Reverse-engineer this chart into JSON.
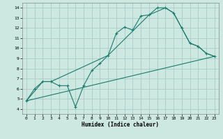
{
  "xlabel": "Humidex (Indice chaleur)",
  "background_color": "#cce8e0",
  "grid_color": "#aaccc4",
  "line_color": "#1a7a6e",
  "xlim": [
    -0.5,
    23.5
  ],
  "ylim": [
    3.5,
    14.5
  ],
  "xticks": [
    0,
    1,
    2,
    3,
    4,
    5,
    6,
    7,
    8,
    9,
    10,
    11,
    12,
    13,
    14,
    15,
    16,
    17,
    18,
    19,
    20,
    21,
    22,
    23
  ],
  "yticks": [
    4,
    5,
    6,
    7,
    8,
    9,
    10,
    11,
    12,
    13,
    14
  ],
  "line1_x": [
    0,
    1,
    2,
    3,
    4,
    5,
    6,
    7,
    8,
    9,
    10,
    11,
    12,
    13,
    14,
    15,
    16,
    17,
    18,
    19,
    20,
    21,
    22,
    23
  ],
  "line1_y": [
    4.8,
    6.0,
    6.7,
    6.7,
    6.3,
    6.3,
    4.2,
    6.3,
    7.8,
    8.5,
    9.3,
    11.5,
    12.1,
    11.8,
    13.2,
    13.3,
    14.0,
    14.0,
    13.5,
    12.0,
    10.5,
    10.2,
    9.5,
    9.2
  ],
  "line2_x": [
    0,
    2,
    3,
    10,
    15,
    17,
    18,
    19,
    20,
    21,
    22,
    23
  ],
  "line2_y": [
    4.8,
    6.7,
    6.7,
    9.3,
    13.3,
    14.0,
    13.5,
    12.0,
    10.5,
    10.2,
    9.5,
    9.2
  ],
  "line3_x": [
    0,
    23
  ],
  "line3_y": [
    4.8,
    9.2
  ]
}
